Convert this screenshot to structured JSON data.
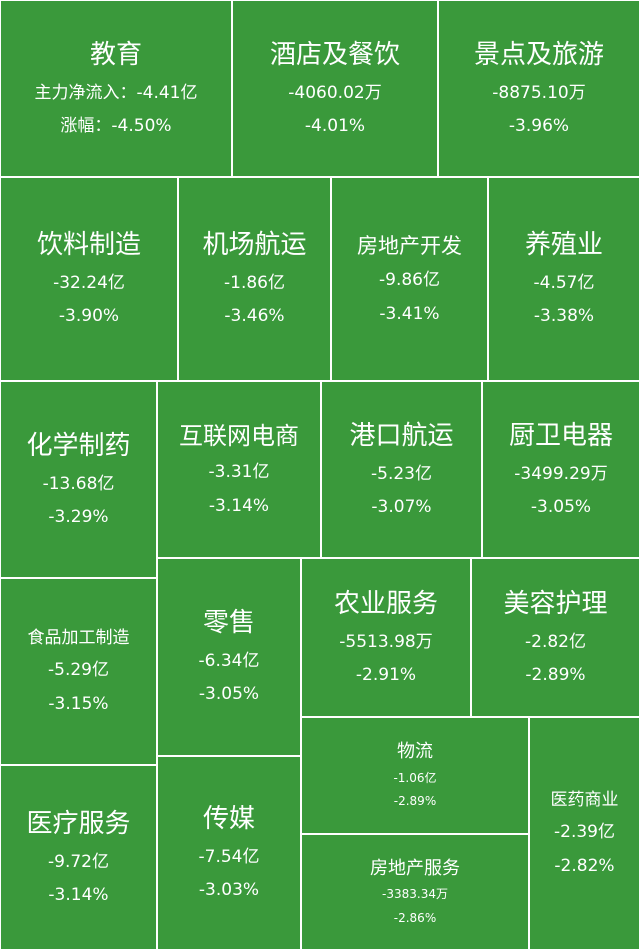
{
  "chart_data": {
    "type": "treemap",
    "colors": {
      "tile": "#3a993b",
      "border": "#ffffff",
      "text": "#ffffff"
    },
    "labels": {
      "flow_prefix": "主力净流入：",
      "pct_prefix": "涨幅："
    },
    "items": [
      {
        "name": "教育",
        "net_inflow": "-4.41亿",
        "change": "-4.50%"
      },
      {
        "name": "酒店及餐饮",
        "net_inflow": "-4060.02万",
        "change": "-4.01%"
      },
      {
        "name": "景点及旅游",
        "net_inflow": "-8875.10万",
        "change": "-3.96%"
      },
      {
        "name": "饮料制造",
        "net_inflow": "-32.24亿",
        "change": "-3.90%"
      },
      {
        "name": "机场航运",
        "net_inflow": "-1.86亿",
        "change": "-3.46%"
      },
      {
        "name": "房地产开发",
        "net_inflow": "-9.86亿",
        "change": "-3.41%"
      },
      {
        "name": "养殖业",
        "net_inflow": "-4.57亿",
        "change": "-3.38%"
      },
      {
        "name": "化学制药",
        "net_inflow": "-13.68亿",
        "change": "-3.29%"
      },
      {
        "name": "互联网电商",
        "net_inflow": "-3.31亿",
        "change": "-3.14%"
      },
      {
        "name": "港口航运",
        "net_inflow": "-5.23亿",
        "change": "-3.07%"
      },
      {
        "name": "厨卫电器",
        "net_inflow": "-3499.29万",
        "change": "-3.05%"
      },
      {
        "name": "食品加工制造",
        "net_inflow": "-5.29亿",
        "change": "-3.15%"
      },
      {
        "name": "零售",
        "net_inflow": "-6.34亿",
        "change": "-3.05%"
      },
      {
        "name": "农业服务",
        "net_inflow": "-5513.98万",
        "change": "-2.91%"
      },
      {
        "name": "美容护理",
        "net_inflow": "-2.82亿",
        "change": "-2.89%"
      },
      {
        "name": "物流",
        "net_inflow": "-1.06亿",
        "change": "-2.89%"
      },
      {
        "name": "医药商业",
        "net_inflow": "-2.39亿",
        "change": "-2.82%"
      },
      {
        "name": "医疗服务",
        "net_inflow": "-9.72亿",
        "change": "-3.14%"
      },
      {
        "name": "传媒",
        "net_inflow": "-7.54亿",
        "change": "-3.03%"
      },
      {
        "name": "房地产服务",
        "net_inflow": "-3383.34万",
        "change": "-2.86%"
      }
    ]
  }
}
